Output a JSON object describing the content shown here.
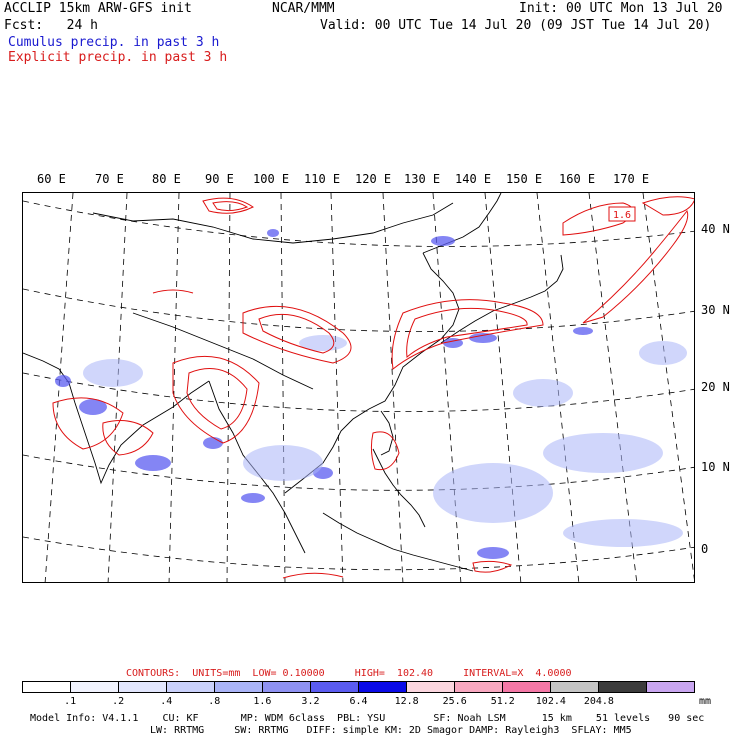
{
  "header": {
    "line1_left": "ACCLIP 15km ARW-GFS init",
    "line1_center": "NCAR/MMM",
    "line1_right": "Init: 00 UTC Mon 13 Jul 20",
    "line2_left": "Fcst:   24 h",
    "line2_right": "Valid: 00 UTC Tue 14 Jul 20 (09 JST Tue 14 Jul 20)",
    "line3": "Cumulus precip. in past 3 h",
    "line4": "Explicit precip. in past 3 h"
  },
  "map": {
    "lon_labels": [
      "60 E",
      "70 E",
      "80 E",
      "90 E",
      "100 E",
      "110 E",
      "120 E",
      "130 E",
      "140 E",
      "150 E",
      "160 E",
      "170 E"
    ],
    "lat_labels": [
      "40 N",
      "30 N",
      "20 N",
      "10 N",
      "0"
    ],
    "contour_max_label": "1.6",
    "colors": {
      "cumulus": "#3a3aff",
      "explicit": "#e01010",
      "coast": "#000000",
      "grid": "#000000"
    }
  },
  "contours": {
    "label": "CONTOURS:  UNITS=mm  LOW= 0.10000     HIGH=  102.40     INTERVAL=X  4.0000"
  },
  "colorbar": {
    "tick_labels": [
      ".1",
      ".2",
      ".4",
      ".8",
      "1.6",
      "3.2",
      "6.4",
      "12.8",
      "25.6",
      "51.2",
      "102.4",
      "204.8"
    ],
    "units": "mm",
    "colors": [
      "#ffffff",
      "#f1f3fe",
      "#e2e6fd",
      "#cad1fb",
      "#aab4f7",
      "#8f92f2",
      "#5b5cf0",
      "#0a0ae6",
      "#fbd6df",
      "#f8a8c0",
      "#f478a6",
      "#c4c4c4",
      "#3c3c3c",
      "#c9a6f0"
    ]
  },
  "footer": {
    "line1": "Model Info: V4.1.1    CU: KF       MP: WDM 6class  PBL: YSU        SF: Noah LSM      15 km    51 levels   90 sec",
    "line2": "LW: RRTMG     SW: RRTMG   DIFF: simple KM: 2D Smagor DAMP: Rayleigh3  SFLAY: MM5"
  }
}
